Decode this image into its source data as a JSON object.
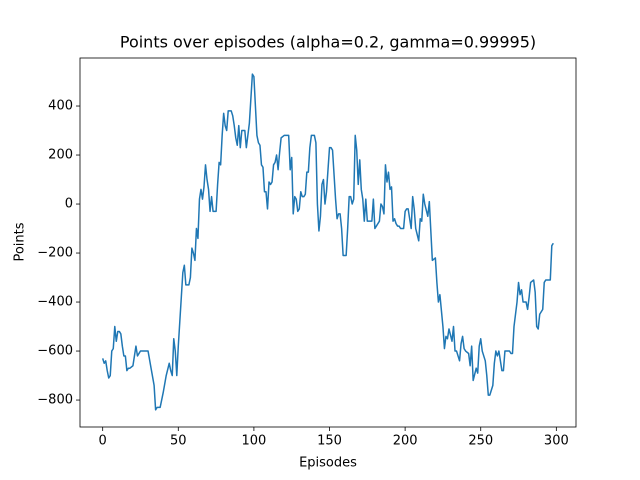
{
  "chart_data": {
    "type": "line",
    "title": "Points over episodes (alpha=0.2, gamma=0.99995)",
    "x_label": "Episodes",
    "y_label": "Points",
    "color": "#1f77b4",
    "grid": false,
    "xlim": [
      -15,
      313
    ],
    "ylim": [
      -910,
      596
    ],
    "xticks": [
      0,
      50,
      100,
      150,
      200,
      250,
      300
    ],
    "yticks": [
      {
        "value": -800,
        "label": "−800"
      },
      {
        "value": -600,
        "label": "−600"
      },
      {
        "value": -400,
        "label": "−400"
      },
      {
        "value": -200,
        "label": "−200"
      },
      0,
      200,
      400
    ],
    "x": [
      0,
      1,
      2,
      3,
      4,
      5,
      6,
      7,
      8,
      9,
      10,
      11,
      12,
      13,
      14,
      15,
      16,
      17,
      18,
      20,
      22,
      23,
      25,
      28,
      30,
      32,
      34,
      35,
      36,
      38,
      40,
      42,
      44,
      45,
      46,
      47,
      48,
      49,
      50,
      51,
      52,
      53,
      54,
      55,
      56,
      57,
      58,
      59,
      60,
      61,
      62,
      63,
      64,
      65,
      66,
      67,
      68,
      69,
      70,
      71,
      72,
      73,
      75,
      76,
      77,
      78,
      79,
      80,
      81,
      82,
      83,
      85,
      86,
      87,
      88,
      89,
      90,
      91,
      92,
      94,
      95,
      97,
      99,
      100,
      101,
      102,
      103,
      104,
      105,
      106,
      107,
      108,
      109,
      110,
      111,
      112,
      113,
      114,
      115,
      116,
      117,
      118,
      120,
      123,
      124,
      125,
      126,
      127,
      128,
      129,
      130,
      131,
      132,
      133,
      134,
      135,
      136,
      137,
      138,
      139,
      140,
      141,
      142,
      143,
      144,
      145,
      146,
      147,
      148,
      149,
      150,
      151,
      152,
      153,
      154,
      155,
      156,
      157,
      158,
      159,
      160,
      161,
      162,
      163,
      164,
      165,
      166,
      167,
      168,
      169,
      170,
      171,
      172,
      173,
      174,
      175,
      176,
      177,
      178,
      179,
      180,
      181,
      182,
      183,
      184,
      185,
      186,
      187,
      188,
      189,
      190,
      191,
      192,
      193,
      194,
      195,
      196,
      197,
      198,
      199,
      200,
      201,
      202,
      204,
      205,
      206,
      207,
      209,
      210,
      211,
      212,
      213,
      215,
      216,
      217,
      218,
      220,
      221,
      222,
      223,
      225,
      226,
      227,
      228,
      229,
      231,
      232,
      233,
      234,
      236,
      237,
      238,
      239,
      240,
      242,
      243,
      244,
      245,
      247,
      248,
      249,
      250,
      251,
      253,
      254,
      255,
      256,
      258,
      259,
      260,
      261,
      262,
      264,
      265,
      266,
      267,
      269,
      270,
      271,
      272,
      274,
      275,
      276,
      277,
      278,
      280,
      281,
      282,
      283,
      285,
      286,
      287,
      288,
      289,
      291,
      292,
      293,
      294,
      296,
      297,
      298
    ],
    "values": [
      -630,
      -650,
      -640,
      -680,
      -710,
      -700,
      -600,
      -590,
      -500,
      -560,
      -520,
      -520,
      -530,
      -580,
      -620,
      -620,
      -680,
      -670,
      -670,
      -660,
      -580,
      -620,
      -600,
      -600,
      -600,
      -670,
      -740,
      -840,
      -830,
      -830,
      -770,
      -700,
      -650,
      -680,
      -700,
      -550,
      -600,
      -700,
      -580,
      -480,
      -380,
      -280,
      -250,
      -330,
      -330,
      -330,
      -300,
      -180,
      -200,
      -230,
      -100,
      -140,
      20,
      60,
      20,
      70,
      160,
      100,
      60,
      -30,
      30,
      -30,
      -30,
      80,
      170,
      160,
      280,
      370,
      320,
      300,
      380,
      380,
      360,
      320,
      270,
      240,
      320,
      230,
      300,
      300,
      230,
      330,
      530,
      520,
      400,
      280,
      250,
      240,
      160,
      150,
      50,
      50,
      -20,
      90,
      80,
      90,
      160,
      170,
      200,
      140,
      210,
      270,
      280,
      280,
      140,
      190,
      -40,
      30,
      20,
      -30,
      -20,
      50,
      30,
      30,
      40,
      130,
      130,
      230,
      280,
      280,
      280,
      250,
      0,
      -110,
      -50,
      80,
      100,
      0,
      50,
      140,
      230,
      230,
      220,
      120,
      20,
      -60,
      -40,
      -40,
      -100,
      -210,
      -210,
      -210,
      -100,
      30,
      30,
      0,
      20,
      280,
      220,
      80,
      180,
      60,
      20,
      -70,
      20,
      -70,
      -70,
      -70,
      -70,
      20,
      -100,
      -90,
      -80,
      -70,
      0,
      -10,
      -40,
      160,
      90,
      130,
      60,
      70,
      -70,
      -60,
      -80,
      -90,
      -90,
      -100,
      -100,
      -100,
      -30,
      -20,
      -20,
      -100,
      30,
      -20,
      -100,
      -150,
      -60,
      -70,
      40,
      0,
      -50,
      10,
      -110,
      -230,
      -220,
      -320,
      -400,
      -370,
      -500,
      -590,
      -540,
      -550,
      -510,
      -560,
      -500,
      -600,
      -600,
      -640,
      -570,
      -540,
      -590,
      -600,
      -610,
      -660,
      -580,
      -720,
      -670,
      -690,
      -580,
      -550,
      -600,
      -640,
      -700,
      -780,
      -780,
      -740,
      -650,
      -600,
      -620,
      -600,
      -680,
      -680,
      -600,
      -600,
      -600,
      -610,
      -610,
      -500,
      -400,
      -320,
      -370,
      -350,
      -400,
      -400,
      -430,
      -380,
      -320,
      -310,
      -360,
      -500,
      -510,
      -450,
      -430,
      -320,
      -310,
      -310,
      -310,
      -170,
      -160
    ]
  }
}
